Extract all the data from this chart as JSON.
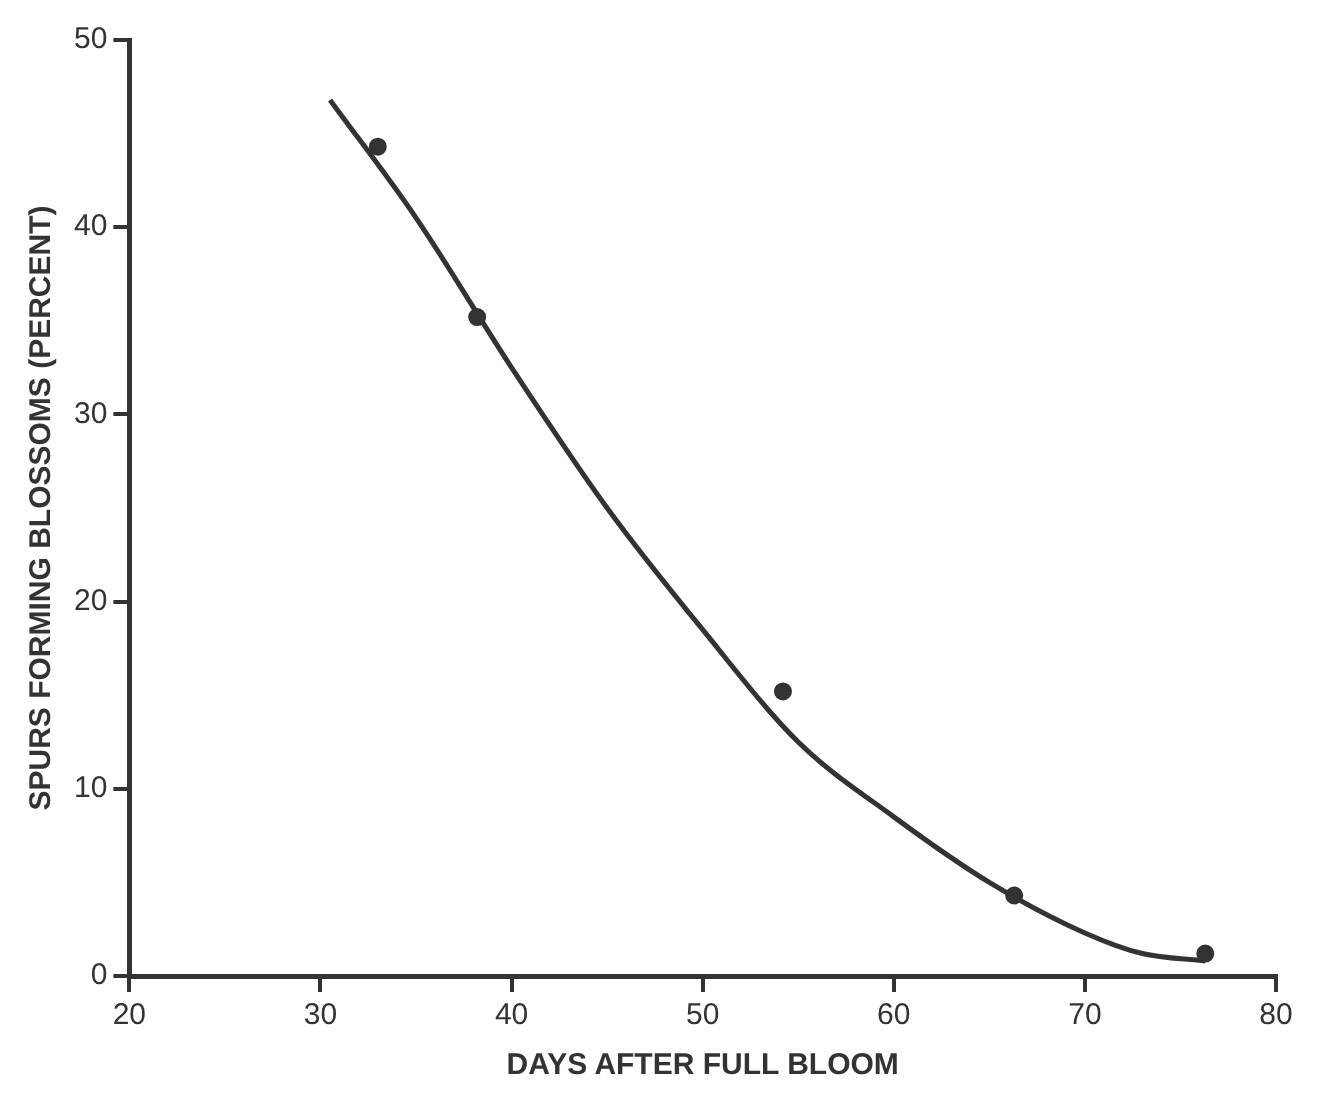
{
  "chart_data": {
    "type": "line",
    "xlabel": "DAYS AFTER FULL BLOOM",
    "ylabel": "SPURS FORMING BLOSSOMS (PERCENT)",
    "xlim": [
      20,
      80
    ],
    "xticks": [
      20,
      30,
      40,
      50,
      60,
      70,
      80
    ],
    "ylim": [
      0,
      50
    ],
    "yticks": [
      0,
      10,
      20,
      30,
      40,
      50
    ],
    "grid": false,
    "legend": false,
    "series": [
      {
        "type": "scatter",
        "color": "#333333",
        "marker": "circle",
        "x": [
          33,
          38.2,
          54.2,
          66.3,
          76.3
        ],
        "values": [
          44.3,
          35.2,
          15.2,
          4.3,
          1.2
        ]
      },
      {
        "type": "line",
        "color": "#333333",
        "marker": "none",
        "line_style": "solid",
        "x": [
          30.5,
          35,
          40,
          45,
          50,
          55,
          60,
          65,
          70,
          73,
          76.3
        ],
        "values": [
          46.8,
          40.5,
          32.5,
          25,
          18.5,
          12.5,
          8.5,
          5,
          2.3,
          1.2,
          0.8
        ]
      }
    ]
  }
}
